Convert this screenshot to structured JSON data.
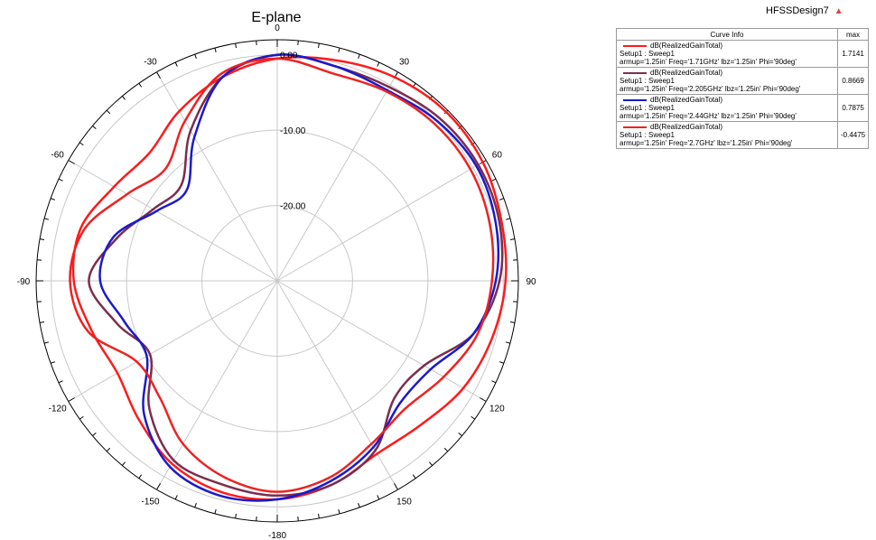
{
  "chart_data": {
    "type": "polar",
    "title": "E-plane",
    "design_name": "HFSSDesign7",
    "angle_ticks": [
      0,
      30,
      60,
      90,
      120,
      150,
      -180,
      -150,
      -120,
      -90,
      -60,
      -30
    ],
    "radial_ticks": [
      0.0,
      -10.0,
      -20.0
    ],
    "radial_tick_labels": [
      "0.00",
      "-10.00",
      "-20.00"
    ],
    "radial_range": [
      -30,
      2
    ],
    "legend": {
      "header_info": "Curve Info",
      "header_max": "max",
      "placement": "top-right"
    },
    "series": [
      {
        "name": "dB(RealizedGainTotal)",
        "setup": "Setup1 : Sweep1",
        "params": "armup='1.25in' Freq='1.71GHz' lbz='1.25in' Phi='90deg'",
        "max": "1.7141",
        "color": "#ff1a1a",
        "angles": [
          0,
          15,
          30,
          45,
          60,
          75,
          90,
          105,
          120,
          135,
          150,
          165,
          180,
          195,
          210,
          225,
          240,
          255,
          270,
          285,
          300,
          315,
          330,
          345
        ],
        "values": [
          -0.5,
          0.3,
          1.2,
          1.7,
          1.5,
          0.8,
          0.3,
          -0.5,
          -1.5,
          -3.0,
          -3.5,
          -2.0,
          -1.0,
          -1.0,
          -2.0,
          -4.0,
          -5.5,
          -4.5,
          -3.0,
          -3.0,
          -5.0,
          -6.0,
          -4.0,
          -2.0
        ]
      },
      {
        "name": "dB(RealizedGainTotal)",
        "setup": "Setup1 : Sweep1",
        "params": "armup='1.25in' Freq='2.205GHz' lbz='1.25in' Phi='90deg'",
        "max": "0.8669",
        "color": "#7a2e4e",
        "angles": [
          0,
          15,
          30,
          45,
          60,
          75,
          90,
          105,
          120,
          135,
          150,
          165,
          180,
          195,
          210,
          225,
          240,
          255,
          270,
          285,
          300,
          315,
          330,
          345
        ],
        "values": [
          0.0,
          -0.5,
          -0.3,
          0.5,
          0.8,
          0.5,
          -0.5,
          -3.0,
          -7.5,
          -8.0,
          -4.0,
          -2.0,
          -1.5,
          -2.0,
          -2.5,
          -6.0,
          -10.5,
          -8.0,
          -5.0,
          -8.0,
          -11.0,
          -12.0,
          -7.0,
          -2.0
        ]
      },
      {
        "name": "dB(RealizedGainTotal)",
        "setup": "Setup1 : Sweep1",
        "params": "armup='1.25in' Freq='2.44GHz' lbz='1.25in' Phi='90deg'",
        "max": "0.7875",
        "color": "#1a1acc",
        "angles": [
          0,
          15,
          30,
          45,
          60,
          75,
          90,
          105,
          120,
          135,
          150,
          165,
          180,
          195,
          210,
          225,
          240,
          255,
          270,
          285,
          300,
          315,
          330,
          345
        ],
        "values": [
          0.0,
          -0.5,
          -0.8,
          0.0,
          0.5,
          0.0,
          -1.0,
          -3.0,
          -6.5,
          -7.0,
          -4.5,
          -2.5,
          -1.0,
          -0.5,
          -1.5,
          -5.0,
          -10.0,
          -9.0,
          -6.5,
          -7.5,
          -11.5,
          -13.0,
          -8.0,
          -2.0
        ]
      },
      {
        "name": "dB(RealizedGainTotal)",
        "setup": "Setup1 : Sweep1",
        "params": "armup='1.25in' Freq='2.7GHz' lbz='1.25in' Phi='90deg'",
        "max": "-0.4475",
        "color": "#ee2222",
        "angles": [
          0,
          15,
          30,
          45,
          60,
          75,
          90,
          105,
          120,
          135,
          150,
          165,
          180,
          195,
          210,
          225,
          240,
          255,
          270,
          285,
          300,
          315,
          330,
          345
        ],
        "values": [
          -0.5,
          -1.5,
          -1.0,
          -0.5,
          -0.4,
          -0.8,
          -1.5,
          -2.5,
          -4.5,
          -6.0,
          -5.0,
          -3.0,
          -2.0,
          -3.0,
          -5.0,
          -8.0,
          -8.5,
          -4.0,
          -2.5,
          -3.5,
          -7.0,
          -9.0,
          -5.5,
          -1.5
        ]
      }
    ]
  }
}
